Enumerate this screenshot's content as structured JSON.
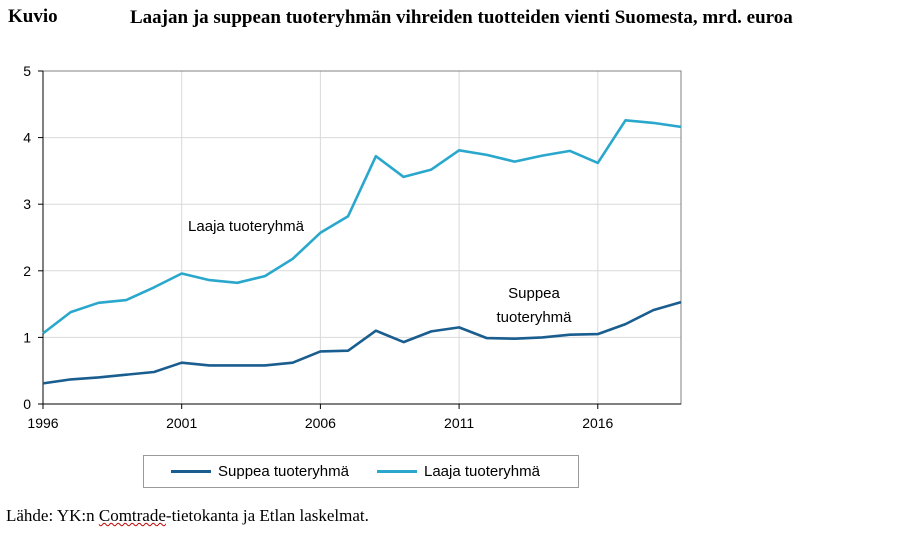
{
  "caption": {
    "label": "Kuvio",
    "title": "Laajan ja suppean tuoteryhmän vihreiden tuotteiden vienti Suomesta, mrd. euroa"
  },
  "source": {
    "prefix": "Lähde: YK:n ",
    "underlined": "Comtrade",
    "suffix": "-tietokanta ja Etlan laskelmat."
  },
  "colors": {
    "suppea": "#1a5d8f",
    "laaja": "#2aa7cc",
    "grid": "#d9d9d9",
    "axis": "#808080"
  },
  "chart_data": {
    "type": "line",
    "xlim": [
      1996,
      2019
    ],
    "ylim": [
      0,
      5
    ],
    "x_ticks": [
      "1996",
      "2001",
      "2006",
      "2011",
      "2016"
    ],
    "y_ticks": [
      "0",
      "1",
      "2",
      "3",
      "4",
      "5"
    ],
    "grid": true,
    "legend_position": "bottom",
    "x": [
      1996,
      1997,
      1998,
      1999,
      2000,
      2001,
      2002,
      2003,
      2004,
      2005,
      2006,
      2007,
      2008,
      2009,
      2010,
      2011,
      2012,
      2013,
      2014,
      2015,
      2016,
      2017,
      2018,
      2019
    ],
    "series": [
      {
        "name": "Suppea tuoteryhmä",
        "color": "#1a5d8f",
        "annotation": [
          "Suppea",
          "tuoteryhmä"
        ],
        "values": [
          0.31,
          0.37,
          0.4,
          0.44,
          0.48,
          0.62,
          0.58,
          0.58,
          0.58,
          0.62,
          0.79,
          0.8,
          1.1,
          0.93,
          1.09,
          1.15,
          0.99,
          0.98,
          1.0,
          1.04,
          1.05,
          1.2,
          1.41,
          1.53
        ]
      },
      {
        "name": "Laaja tuoteryhmä",
        "color": "#2aa7cc",
        "annotation": [
          "Laaja tuoteryhmä"
        ],
        "values": [
          1.06,
          1.38,
          1.52,
          1.56,
          1.75,
          1.96,
          1.86,
          1.82,
          1.92,
          2.18,
          2.57,
          2.82,
          3.72,
          3.41,
          3.52,
          3.81,
          3.74,
          3.64,
          3.73,
          3.8,
          3.62,
          4.26,
          4.22,
          4.16
        ]
      }
    ]
  }
}
